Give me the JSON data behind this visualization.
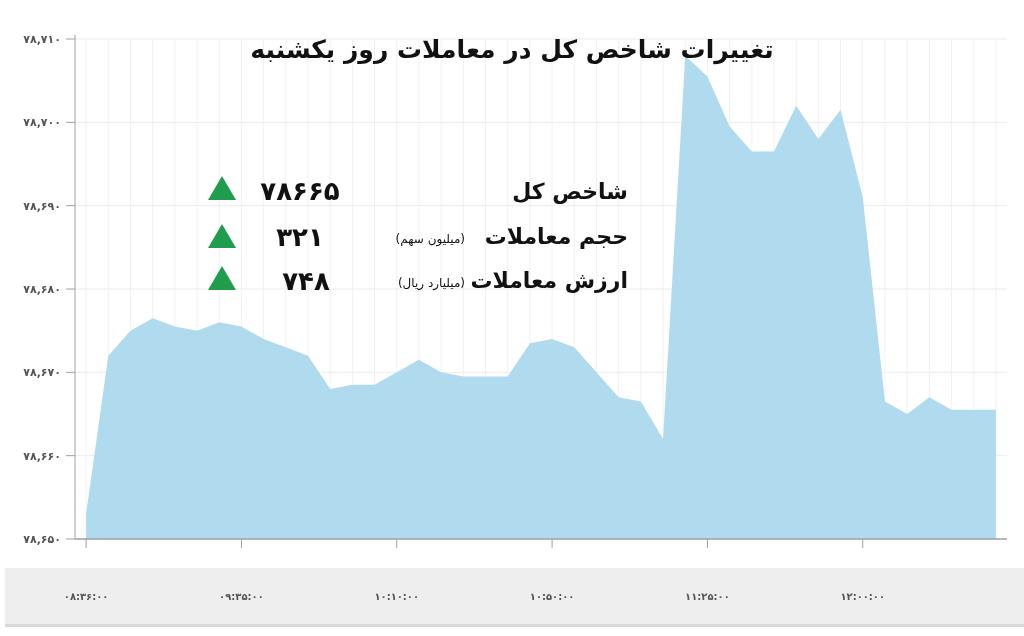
{
  "chart_data": {
    "type": "area",
    "title": "تغییرات شاخص کل در معاملات روز یکشنبه",
    "categories": [
      "۰۸:۳۶:۰۰",
      null,
      null,
      null,
      null,
      null,
      null,
      "۰۹:۳۵:۰۰",
      null,
      null,
      null,
      null,
      null,
      null,
      "۱۰:۱۰:۰۰",
      null,
      null,
      null,
      null,
      null,
      null,
      "۱۰:۵۰:۰۰",
      null,
      null,
      null,
      null,
      null,
      null,
      "۱۱:۲۵:۰۰",
      null,
      null,
      null,
      null,
      null,
      null,
      "۱۲:۰۰:۰۰",
      null,
      null,
      null,
      null,
      null,
      null
    ],
    "values": [
      78653,
      78672,
      78675,
      78676.5,
      78675.5,
      78675,
      78676,
      78675.5,
      78674,
      78673,
      78672,
      78668,
      78668.5,
      78668.5,
      78670,
      78671.5,
      78670,
      78669.5,
      78669.5,
      78669.5,
      78673.5,
      78674,
      78673,
      78670,
      78667,
      78666.5,
      78662,
      78708,
      78705.5,
      78699.5,
      78696.5,
      78696.5,
      78702,
      78698,
      78701.5,
      78691,
      78666.5,
      78665,
      78667,
      78665.5,
      78665.5,
      78665.5
    ],
    "color": "#b0daee",
    "ylim": [
      78650,
      78710
    ],
    "yticks": [
      {
        "value": 78650,
        "label": "۷۸,۶۵۰"
      },
      {
        "value": 78660,
        "label": "۷۸,۶۶۰"
      },
      {
        "value": 78670,
        "label": "۷۸,۶۷۰"
      },
      {
        "value": 78680,
        "label": "۷۸,۶۸۰"
      },
      {
        "value": 78690,
        "label": "۷۸,۶۹۰"
      },
      {
        "value": 78700,
        "label": "۷۸,۷۰۰"
      },
      {
        "value": 78710,
        "label": "۷۸,۷۱۰"
      }
    ],
    "grid": true,
    "annotations": [
      "شاخص کل",
      "۷۸۶۶۵",
      "حجم معاملات",
      "(میلیون سهم)",
      "۳۲۱",
      "ارزش معاملات",
      "(میلیارد ریال)",
      "۷۴۸"
    ]
  }
}
